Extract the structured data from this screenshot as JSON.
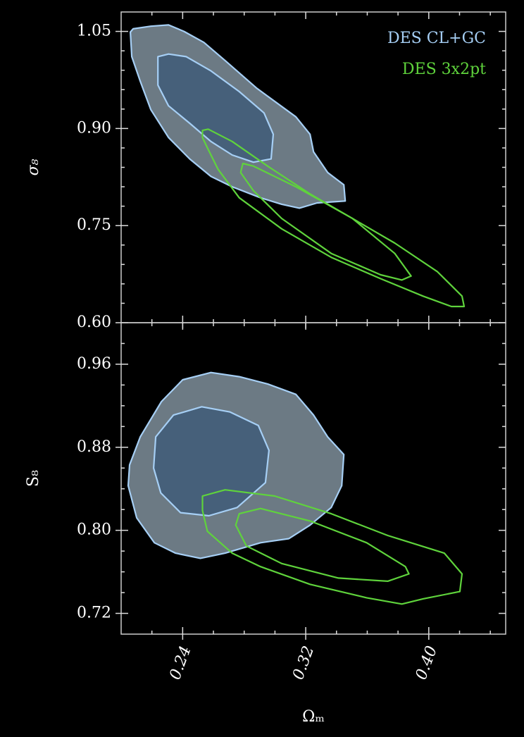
{
  "chart_data": [
    {
      "type": "contour",
      "ylabel": "σ₈",
      "xlim": [
        0.2,
        0.45
      ],
      "ylim": [
        0.6,
        1.08
      ],
      "xticks": [
        0.24,
        0.32,
        0.4
      ],
      "show_xticklabels": false,
      "xminorticks": [
        0.22,
        0.26,
        0.28,
        0.3,
        0.34,
        0.36,
        0.38,
        0.42,
        0.44
      ],
      "yticks": [
        {
          "value": 0.6,
          "label": "0.60"
        },
        0.75,
        {
          "value": 0.9,
          "label": "0.90"
        },
        1.05
      ],
      "yminorticks": [
        0.63,
        0.66,
        0.69,
        0.72,
        0.78,
        0.81,
        0.84,
        0.87,
        0.93,
        0.96,
        0.99,
        1.02
      ],
      "legend": "upper right",
      "series": [
        {
          "name": "DES CL+GC",
          "color": "#a6cff5",
          "fills": [
            "#6c7a84",
            "#46607a"
          ],
          "contours": [
            {
              "x": [
                0.206,
                0.2078,
                0.2193,
                0.2308,
                0.2409,
                0.2538,
                0.2676,
                0.2883,
                0.3136,
                0.3228,
                0.3251,
                0.3343,
                0.3448,
                0.3457,
                0.3274,
                0.3159,
                0.3044,
                0.2906,
                0.2722,
                0.2584,
                0.2446,
                0.2308,
                0.2193,
                0.2124,
                0.2069
              ],
              "y": [
                1.049,
                1.054,
                1.058,
                1.06,
                1.05,
                1.033,
                1.005,
                0.962,
                0.918,
                0.891,
                0.864,
                0.832,
                0.813,
                0.788,
                0.785,
                0.777,
                0.783,
                0.793,
                0.81,
                0.826,
                0.853,
                0.886,
                0.929,
                0.973,
                1.011
              ]
            },
            {
              "x": [
                0.2239,
                0.2308,
                0.2423,
                0.2584,
                0.2768,
                0.2929,
                0.2989,
                0.2975,
                0.286,
                0.2722,
                0.2584,
                0.2446,
                0.2308,
                0.2239
              ],
              "y": [
                1.011,
                1.015,
                1.011,
                0.989,
                0.957,
                0.924,
                0.891,
                0.853,
                0.848,
                0.859,
                0.88,
                0.908,
                0.935,
                0.967
              ]
            }
          ]
        },
        {
          "name": "DES 3x2pt",
          "color": "#5fd33c",
          "fills": null,
          "contours": [
            {
              "x": [
                0.2529,
                0.2566,
                0.2722,
                0.2952,
                0.3228,
                0.3504,
                0.3779,
                0.4055,
                0.4216,
                0.423,
                0.4147,
                0.3963,
                0.3687,
                0.3366,
                0.3044,
                0.2768,
                0.263,
                0.2561,
                0.2529
              ],
              "y": [
                0.897,
                0.899,
                0.88,
                0.842,
                0.799,
                0.761,
                0.723,
                0.679,
                0.641,
                0.625,
                0.625,
                0.641,
                0.668,
                0.701,
                0.745,
                0.793,
                0.837,
                0.87,
                0.886
              ]
            },
            {
              "x": [
                0.2791,
                0.286,
                0.3136,
                0.3504,
                0.3779,
                0.3885,
                0.3825,
                0.3687,
                0.3366,
                0.3044,
                0.286,
                0.2777
              ],
              "y": [
                0.846,
                0.842,
                0.81,
                0.761,
                0.707,
                0.672,
                0.666,
                0.674,
                0.707,
                0.761,
                0.804,
                0.832
              ]
            }
          ]
        }
      ]
    },
    {
      "type": "contour",
      "ylabel": "S₈",
      "xlabel": "Ωₘ",
      "xlim": [
        0.2,
        0.45
      ],
      "ylim": [
        0.7,
        1.0
      ],
      "xticks": [
        {
          "value": 0.24,
          "label": "0.24"
        },
        {
          "value": 0.32,
          "label": "0.32"
        },
        {
          "value": 0.4,
          "label": "0.40"
        }
      ],
      "show_xticklabels": true,
      "xminorticks": [
        0.22,
        0.26,
        0.28,
        0.3,
        0.34,
        0.36,
        0.38,
        0.42,
        0.44
      ],
      "yticks": [
        0.72,
        {
          "value": 0.8,
          "label": "0.80"
        },
        {
          "value": 0.88,
          "label": "0.88"
        },
        {
          "value": 0.96,
          "label": "0.96"
        }
      ],
      "yminorticks": [
        0.74,
        0.76,
        0.78,
        0.82,
        0.84,
        0.86,
        0.9,
        0.92,
        0.94,
        0.98
      ],
      "series": [
        {
          "color": "#a6cff5",
          "fills": [
            "#6c7a84",
            "#46607a"
          ],
          "contours": [
            {
              "x": [
                0.2055,
                0.2124,
                0.2262,
                0.24,
                0.2584,
                0.2768,
                0.2952,
                0.3136,
                0.3251,
                0.3343,
                0.3448,
                0.3434,
                0.3366,
                0.3228,
                0.309,
                0.2906,
                0.2676,
                0.2515,
                0.2354,
                0.2216,
                0.2101,
                0.2046
              ],
              "y": [
                0.863,
                0.89,
                0.924,
                0.945,
                0.952,
                0.948,
                0.941,
                0.931,
                0.911,
                0.89,
                0.873,
                0.843,
                0.822,
                0.805,
                0.792,
                0.788,
                0.778,
                0.773,
                0.778,
                0.788,
                0.812,
                0.843
              ]
            },
            {
              "x": [
                0.2225,
                0.234,
                0.2524,
                0.2708,
                0.2892,
                0.2961,
                0.2938,
                0.2754,
                0.257,
                0.2386,
                0.2258,
                0.2211
              ],
              "y": [
                0.89,
                0.911,
                0.919,
                0.914,
                0.901,
                0.877,
                0.846,
                0.822,
                0.814,
                0.817,
                0.836,
                0.86
              ]
            }
          ]
        },
        {
          "color": "#5fd33c",
          "fills": null,
          "contours": [
            {
              "x": [
                0.2529,
                0.2676,
                0.2998,
                0.3366,
                0.3733,
                0.4101,
                0.4216,
                0.4202,
                0.3963,
                0.3825,
                0.3596,
                0.3228,
                0.2906,
                0.2722,
                0.2561,
                0.2529
              ],
              "y": [
                0.833,
                0.839,
                0.833,
                0.816,
                0.795,
                0.778,
                0.758,
                0.741,
                0.734,
                0.729,
                0.735,
                0.748,
                0.765,
                0.778,
                0.799,
                0.819
              ]
            },
            {
              "x": [
                0.2768,
                0.2906,
                0.3228,
                0.3596,
                0.3848,
                0.3871,
                0.3733,
                0.3412,
                0.3044,
                0.2814,
                0.2745
              ],
              "y": [
                0.816,
                0.821,
                0.809,
                0.788,
                0.765,
                0.758,
                0.751,
                0.754,
                0.768,
                0.785,
                0.805
              ]
            }
          ]
        }
      ]
    }
  ]
}
